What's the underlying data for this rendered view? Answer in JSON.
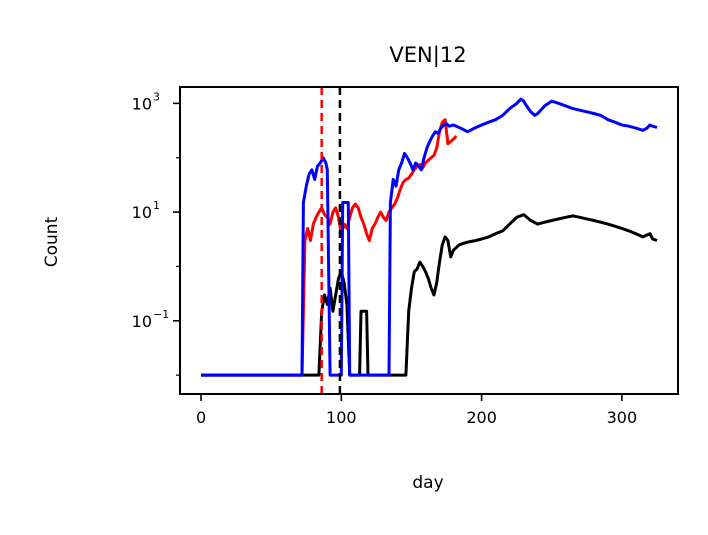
{
  "chart_data": {
    "type": "line",
    "title": "VEN|12",
    "xlabel": "day",
    "ylabel": "Count",
    "yscale": "log",
    "xlim": [
      -15,
      340
    ],
    "ylim": [
      0.0045,
      2000
    ],
    "x_ticks": [
      {
        "value": 0,
        "label": "0"
      },
      {
        "value": 100,
        "label": "100"
      },
      {
        "value": 200,
        "label": "200"
      },
      {
        "value": 300,
        "label": "300"
      }
    ],
    "y_ticks": [
      {
        "value": 0.1,
        "base": "10",
        "exp": "−1"
      },
      {
        "value": 10,
        "base": "10",
        "exp": "1"
      },
      {
        "value": 1000,
        "base": "10",
        "exp": "3"
      }
    ],
    "grid": false,
    "vlines": [
      {
        "x": 86,
        "color": "#ff0000",
        "style": "dashed"
      },
      {
        "x": 99,
        "color": "#000000",
        "style": "dashed"
      }
    ],
    "series": [
      {
        "color": "#ff0000",
        "points": [
          [
            0,
            0.01
          ],
          [
            72,
            0.01
          ],
          [
            74,
            3
          ],
          [
            76,
            5
          ],
          [
            78,
            3
          ],
          [
            80,
            6
          ],
          [
            82,
            8
          ],
          [
            84,
            10
          ],
          [
            86,
            12
          ],
          [
            88,
            9
          ],
          [
            90,
            8
          ],
          [
            92,
            6
          ],
          [
            94,
            10
          ],
          [
            96,
            12
          ],
          [
            98,
            8
          ],
          [
            100,
            4
          ],
          [
            102,
            6
          ],
          [
            104,
            5
          ],
          [
            106,
            8
          ],
          [
            108,
            12
          ],
          [
            110,
            14
          ],
          [
            112,
            12
          ],
          [
            114,
            8
          ],
          [
            116,
            6
          ],
          [
            118,
            4
          ],
          [
            120,
            3
          ],
          [
            122,
            5
          ],
          [
            124,
            6
          ],
          [
            126,
            8
          ],
          [
            128,
            10
          ],
          [
            130,
            8
          ],
          [
            132,
            7
          ],
          [
            134,
            10
          ],
          [
            136,
            12
          ],
          [
            138,
            14
          ],
          [
            140,
            18
          ],
          [
            142,
            26
          ],
          [
            144,
            35
          ],
          [
            146,
            40
          ],
          [
            148,
            42
          ],
          [
            150,
            50
          ],
          [
            152,
            60
          ],
          [
            154,
            70
          ],
          [
            156,
            75
          ],
          [
            158,
            65
          ],
          [
            160,
            80
          ],
          [
            162,
            90
          ],
          [
            164,
            100
          ],
          [
            166,
            110
          ],
          [
            168,
            150
          ],
          [
            170,
            300
          ],
          [
            172,
            450
          ],
          [
            174,
            500
          ],
          [
            176,
            180
          ],
          [
            178,
            200
          ],
          [
            180,
            220
          ],
          [
            182,
            250
          ]
        ]
      },
      {
        "color": "#000000",
        "points": [
          [
            0,
            0.01
          ],
          [
            84,
            0.01
          ],
          [
            86,
            0.15
          ],
          [
            88,
            0.3
          ],
          [
            90,
            0.2
          ],
          [
            92,
            0.4
          ],
          [
            94,
            0.15
          ],
          [
            96,
            0.3
          ],
          [
            98,
            0.6
          ],
          [
            100,
            0.8
          ],
          [
            102,
            0.5
          ],
          [
            104,
            0.2
          ],
          [
            106,
            0.01
          ],
          [
            113,
            0.01
          ],
          [
            114,
            0.15
          ],
          [
            118,
            0.15
          ],
          [
            119,
            0.01
          ],
          [
            146,
            0.01
          ],
          [
            148,
            0.15
          ],
          [
            150,
            0.4
          ],
          [
            152,
            0.8
          ],
          [
            154,
            0.9
          ],
          [
            156,
            1.2
          ],
          [
            158,
            1.0
          ],
          [
            160,
            0.8
          ],
          [
            162,
            0.6
          ],
          [
            164,
            0.4
          ],
          [
            166,
            0.3
          ],
          [
            168,
            0.5
          ],
          [
            170,
            1.2
          ],
          [
            172,
            2.5
          ],
          [
            174,
            3.5
          ],
          [
            176,
            3.0
          ],
          [
            178,
            1.5
          ],
          [
            180,
            2.0
          ],
          [
            184,
            2.5
          ],
          [
            190,
            2.8
          ],
          [
            196,
            3.0
          ],
          [
            200,
            3.2
          ],
          [
            205,
            3.5
          ],
          [
            210,
            4.0
          ],
          [
            215,
            4.5
          ],
          [
            220,
            6
          ],
          [
            225,
            8
          ],
          [
            230,
            9
          ],
          [
            235,
            7
          ],
          [
            240,
            6
          ],
          [
            245,
            6.5
          ],
          [
            250,
            7
          ],
          [
            255,
            7.5
          ],
          [
            260,
            8
          ],
          [
            265,
            8.5
          ],
          [
            270,
            8
          ],
          [
            275,
            7.5
          ],
          [
            280,
            7
          ],
          [
            285,
            6.5
          ],
          [
            290,
            6
          ],
          [
            295,
            5.5
          ],
          [
            300,
            5
          ],
          [
            305,
            4.5
          ],
          [
            310,
            4
          ],
          [
            315,
            3.5
          ],
          [
            318,
            3.8
          ],
          [
            320,
            4
          ],
          [
            322,
            3.2
          ],
          [
            325,
            3
          ]
        ]
      },
      {
        "color": "#0000ff",
        "points": [
          [
            0,
            0.01
          ],
          [
            72,
            0.01
          ],
          [
            73,
            15
          ],
          [
            75,
            30
          ],
          [
            77,
            50
          ],
          [
            79,
            60
          ],
          [
            81,
            40
          ],
          [
            83,
            70
          ],
          [
            85,
            80
          ],
          [
            87,
            100
          ],
          [
            89,
            80
          ],
          [
            90,
            60
          ],
          [
            92,
            0.01
          ],
          [
            100,
            0.01
          ],
          [
            101,
            15
          ],
          [
            105,
            15
          ],
          [
            106,
            0.01
          ],
          [
            108,
            0.01
          ],
          [
            110,
            0.01
          ],
          [
            134,
            0.01
          ],
          [
            135,
            15
          ],
          [
            137,
            40
          ],
          [
            139,
            30
          ],
          [
            141,
            60
          ],
          [
            143,
            80
          ],
          [
            145,
            120
          ],
          [
            147,
            100
          ],
          [
            149,
            80
          ],
          [
            151,
            60
          ],
          [
            153,
            80
          ],
          [
            155,
            70
          ],
          [
            157,
            60
          ],
          [
            159,
            100
          ],
          [
            161,
            150
          ],
          [
            163,
            200
          ],
          [
            165,
            250
          ],
          [
            167,
            300
          ],
          [
            169,
            280
          ],
          [
            171,
            350
          ],
          [
            173,
            400
          ],
          [
            175,
            420
          ],
          [
            177,
            380
          ],
          [
            180,
            400
          ],
          [
            185,
            350
          ],
          [
            190,
            300
          ],
          [
            195,
            350
          ],
          [
            200,
            400
          ],
          [
            205,
            450
          ],
          [
            210,
            500
          ],
          [
            215,
            600
          ],
          [
            220,
            800
          ],
          [
            225,
            1000
          ],
          [
            228,
            1200
          ],
          [
            230,
            1100
          ],
          [
            232,
            900
          ],
          [
            235,
            700
          ],
          [
            238,
            600
          ],
          [
            240,
            650
          ],
          [
            245,
            900
          ],
          [
            250,
            1100
          ],
          [
            255,
            1000
          ],
          [
            260,
            900
          ],
          [
            265,
            800
          ],
          [
            270,
            750
          ],
          [
            275,
            700
          ],
          [
            280,
            650
          ],
          [
            285,
            600
          ],
          [
            290,
            500
          ],
          [
            295,
            450
          ],
          [
            300,
            400
          ],
          [
            305,
            380
          ],
          [
            310,
            350
          ],
          [
            315,
            320
          ],
          [
            318,
            350
          ],
          [
            320,
            400
          ],
          [
            322,
            380
          ],
          [
            325,
            360
          ]
        ]
      }
    ]
  }
}
